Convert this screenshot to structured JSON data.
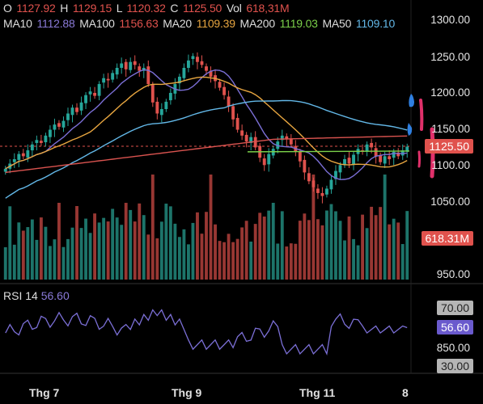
{
  "header": {
    "line1": [
      {
        "label": "O",
        "value": "1127.92",
        "label_color": "#dddddd",
        "value_color": "#e0524d"
      },
      {
        "label": "H",
        "value": "1129.15",
        "label_color": "#dddddd",
        "value_color": "#e0524d"
      },
      {
        "label": "L",
        "value": "1120.32",
        "label_color": "#dddddd",
        "value_color": "#e0524d"
      },
      {
        "label": "C",
        "value": "1125.50",
        "label_color": "#dddddd",
        "value_color": "#e0524d"
      },
      {
        "label": "Vol",
        "value": "618,31M",
        "label_color": "#dddddd",
        "value_color": "#e0524d"
      }
    ],
    "line2": [
      {
        "label": "MA10",
        "value": "1112.88",
        "label_color": "#dddddd",
        "value_color": "#8a7ad8"
      },
      {
        "label": "MA100",
        "value": "1156.63",
        "label_color": "#dddddd",
        "value_color": "#e0524d"
      },
      {
        "label": "MA20",
        "value": "1109.39",
        "label_color": "#dddddd",
        "value_color": "#e8a640"
      },
      {
        "label": "MA200",
        "value": "1119.03",
        "label_color": "#dddddd",
        "value_color": "#7bd14a"
      },
      {
        "label": "MA50",
        "value": "1109.10",
        "label_color": "#dddddd",
        "value_color": "#63b8e8"
      }
    ]
  },
  "price_axis": [
    "1300.00",
    "1250.00",
    "1200.00",
    "1150.00",
    "1100.00",
    "1050.00",
    "950.00"
  ],
  "price_badge": {
    "value": "1125.50",
    "bg": "#e0524d"
  },
  "volume_badge": {
    "value": "618.31M",
    "bg": "#e0524d"
  },
  "rsi": {
    "title": "RSI 14",
    "value": "56.60",
    "axis": [
      "70.00",
      "850.00",
      "30.00"
    ],
    "value_badge_bg": "#6a5acd",
    "level_badge_bg": "#b5b5b5"
  },
  "x_axis": [
    "Thg 7",
    "Thg 9",
    "Thg 11",
    "8"
  ],
  "colors": {
    "up": "#26a69a",
    "down": "#e0524d",
    "ma10": "#7b6fd6",
    "ma20": "#e8a640",
    "ma50": "#63b8e8",
    "ma100": "#d9534f",
    "ma200": "#7bd14a",
    "rsi": "#7b6fd6",
    "annotation_red": "#e0306a",
    "annotation_blue": "#2f7fe0"
  },
  "chart_data": {
    "type": "candlestick",
    "ylim": [
      950,
      1300
    ],
    "closes": [
      1095,
      1102,
      1108,
      1115,
      1112,
      1120,
      1128,
      1134,
      1130,
      1140,
      1148,
      1155,
      1152,
      1160,
      1170,
      1178,
      1172,
      1185,
      1195,
      1200,
      1194,
      1210,
      1218,
      1215,
      1225,
      1232,
      1238,
      1230,
      1240,
      1236,
      1228,
      1232,
      1210,
      1185,
      1170,
      1176,
      1186,
      1198,
      1210,
      1220,
      1232,
      1242,
      1248,
      1240,
      1236,
      1228,
      1220,
      1214,
      1205,
      1195,
      1180,
      1162,
      1148,
      1140,
      1132,
      1138,
      1124,
      1110,
      1100,
      1115,
      1122,
      1132,
      1140,
      1135,
      1128,
      1118,
      1105,
      1090,
      1078,
      1070,
      1062,
      1058,
      1068,
      1080,
      1092,
      1100,
      1108,
      1102,
      1114,
      1122,
      1118,
      1128,
      1124,
      1112,
      1104,
      1112,
      1108,
      1118,
      1112,
      1120,
      1125
    ]
  }
}
